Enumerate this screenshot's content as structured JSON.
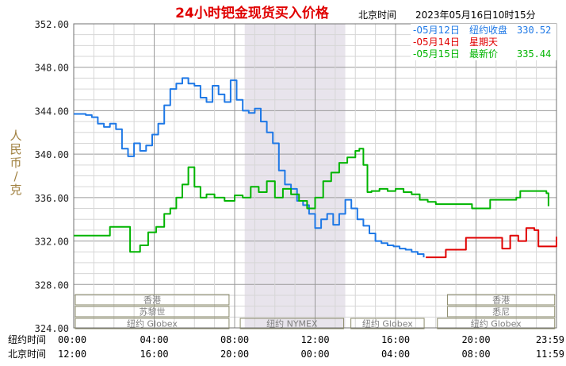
{
  "chart_data": {
    "type": "line",
    "title": "24小时钯金现货买入价格",
    "timezone_label": "北京时间",
    "timestamp": "2023年05月16日10时15分",
    "ylabel": "人民币/克",
    "ylim": [
      324,
      352
    ],
    "y_ticks": [
      "324.00",
      "328.00",
      "332.00",
      "336.00",
      "340.00",
      "344.00",
      "348.00",
      "352.00"
    ],
    "x_rows": [
      {
        "label": "纽约时间",
        "ticks": [
          "00:00",
          "04:00",
          "08:00",
          "12:00",
          "16:00",
          "20:00",
          "23:59"
        ]
      },
      {
        "label": "北京时间",
        "ticks": [
          "12:00",
          "16:00",
          "20:00",
          "00:00",
          "04:00",
          "08:00",
          "11:59"
        ]
      }
    ],
    "x_range_hours": [
      0,
      24
    ],
    "legend": [
      {
        "date": "-05月12日",
        "desc": "纽约收盘",
        "value": "330.52",
        "color": "#1e78e6"
      },
      {
        "date": "-05月14日",
        "desc": "星期天",
        "value": "",
        "color": "#e00000"
      },
      {
        "date": "-05月15日",
        "desc": "最新价",
        "value": "335.44",
        "color": "#00b400"
      }
    ],
    "shaded_band_hours": [
      8.5,
      13.5
    ],
    "sessions": {
      "row1": [
        {
          "label": "香港",
          "start": 0,
          "end": 7.8
        },
        {
          "label": "香港",
          "start": 18.5,
          "end": 23.99
        }
      ],
      "row2": [
        {
          "label": "苏黎世",
          "start": 0,
          "end": 7.8
        },
        {
          "label": "悉尼",
          "start": 18.5,
          "end": 23.99
        }
      ],
      "row3": [
        {
          "label": "纽约 Globex",
          "start": 0,
          "end": 7.8
        },
        {
          "label": "纽约 NYMEX",
          "start": 8.2,
          "end": 13.5
        },
        {
          "label": "纽约 Globex",
          "start": 13.7,
          "end": 17.5
        },
        {
          "label": "纽约 Globex",
          "start": 18.0,
          "end": 23.99
        }
      ]
    },
    "series": [
      {
        "name": "05月12日",
        "color": "#1e78e6",
        "points": [
          [
            0.0,
            343.7
          ],
          [
            0.3,
            343.7
          ],
          [
            0.6,
            343.6
          ],
          [
            0.9,
            343.4
          ],
          [
            1.2,
            342.8
          ],
          [
            1.5,
            342.5
          ],
          [
            1.8,
            342.8
          ],
          [
            2.1,
            342.3
          ],
          [
            2.4,
            340.5
          ],
          [
            2.7,
            339.8
          ],
          [
            3.0,
            341.0
          ],
          [
            3.3,
            340.3
          ],
          [
            3.6,
            340.8
          ],
          [
            3.9,
            341.8
          ],
          [
            4.2,
            342.8
          ],
          [
            4.5,
            344.5
          ],
          [
            4.8,
            346.0
          ],
          [
            5.1,
            346.5
          ],
          [
            5.4,
            347.0
          ],
          [
            5.7,
            346.5
          ],
          [
            6.0,
            346.3
          ],
          [
            6.3,
            345.2
          ],
          [
            6.6,
            344.8
          ],
          [
            6.9,
            346.3
          ],
          [
            7.2,
            345.5
          ],
          [
            7.5,
            344.8
          ],
          [
            7.8,
            346.8
          ],
          [
            8.1,
            345.0
          ],
          [
            8.4,
            344.0
          ],
          [
            8.7,
            343.8
          ],
          [
            9.0,
            344.2
          ],
          [
            9.3,
            343.0
          ],
          [
            9.6,
            342.0
          ],
          [
            9.9,
            341.0
          ],
          [
            10.2,
            338.5
          ],
          [
            10.5,
            337.2
          ],
          [
            10.8,
            336.8
          ],
          [
            11.1,
            335.7
          ],
          [
            11.4,
            335.3
          ],
          [
            11.7,
            334.5
          ],
          [
            12.0,
            333.2
          ],
          [
            12.3,
            334.0
          ],
          [
            12.6,
            334.5
          ],
          [
            12.9,
            333.5
          ],
          [
            13.2,
            334.5
          ],
          [
            13.5,
            335.8
          ],
          [
            13.8,
            335.0
          ],
          [
            14.1,
            334.0
          ],
          [
            14.4,
            333.4
          ],
          [
            14.7,
            332.7
          ],
          [
            15.0,
            332.0
          ],
          [
            15.3,
            331.8
          ],
          [
            15.6,
            331.6
          ],
          [
            15.9,
            331.5
          ],
          [
            16.2,
            331.3
          ],
          [
            16.5,
            331.2
          ],
          [
            16.8,
            331.0
          ],
          [
            17.1,
            330.8
          ],
          [
            17.4,
            330.5
          ]
        ]
      },
      {
        "name": "05月14日",
        "color": "#e00000",
        "points": [
          [
            17.5,
            330.5
          ],
          [
            18.2,
            330.5
          ],
          [
            18.5,
            331.2
          ],
          [
            19.2,
            331.2
          ],
          [
            19.5,
            332.3
          ],
          [
            21.0,
            332.3
          ],
          [
            21.3,
            331.3
          ],
          [
            21.7,
            332.5
          ],
          [
            22.1,
            332.0
          ],
          [
            22.5,
            333.2
          ],
          [
            22.9,
            333.0
          ],
          [
            23.1,
            331.5
          ],
          [
            23.9,
            331.5
          ],
          [
            24.0,
            332.4
          ]
        ]
      },
      {
        "name": "05月15日",
        "color": "#00b400",
        "points": [
          [
            0.0,
            332.5
          ],
          [
            1.5,
            332.5
          ],
          [
            1.8,
            333.3
          ],
          [
            2.6,
            333.3
          ],
          [
            2.8,
            331.0
          ],
          [
            3.3,
            331.6
          ],
          [
            3.7,
            332.8
          ],
          [
            4.1,
            333.3
          ],
          [
            4.5,
            334.5
          ],
          [
            4.8,
            335.0
          ],
          [
            5.1,
            336.0
          ],
          [
            5.4,
            337.2
          ],
          [
            5.7,
            338.8
          ],
          [
            6.0,
            337.0
          ],
          [
            6.3,
            336.0
          ],
          [
            6.6,
            336.3
          ],
          [
            7.0,
            336.0
          ],
          [
            7.5,
            335.7
          ],
          [
            8.0,
            336.2
          ],
          [
            8.4,
            336.0
          ],
          [
            8.8,
            337.0
          ],
          [
            9.2,
            336.5
          ],
          [
            9.6,
            337.5
          ],
          [
            10.0,
            336.0
          ],
          [
            10.4,
            336.8
          ],
          [
            10.8,
            336.3
          ],
          [
            11.2,
            335.7
          ],
          [
            11.6,
            335.0
          ],
          [
            12.0,
            336.0
          ],
          [
            12.4,
            337.5
          ],
          [
            12.8,
            338.3
          ],
          [
            13.2,
            339.2
          ],
          [
            13.6,
            339.7
          ],
          [
            14.0,
            340.3
          ],
          [
            14.2,
            340.5
          ],
          [
            14.4,
            339.0
          ],
          [
            14.6,
            336.5
          ],
          [
            14.8,
            336.6
          ],
          [
            15.2,
            336.8
          ],
          [
            15.6,
            336.6
          ],
          [
            16.0,
            336.8
          ],
          [
            16.4,
            336.5
          ],
          [
            16.8,
            336.3
          ],
          [
            17.2,
            335.8
          ],
          [
            17.6,
            335.6
          ],
          [
            18.0,
            335.4
          ],
          [
            19.5,
            335.4
          ],
          [
            19.8,
            335.0
          ],
          [
            20.4,
            335.0
          ],
          [
            20.7,
            335.8
          ],
          [
            22.0,
            336.0
          ],
          [
            22.2,
            336.6
          ],
          [
            23.5,
            336.4
          ],
          [
            23.6,
            335.2
          ]
        ]
      }
    ]
  }
}
